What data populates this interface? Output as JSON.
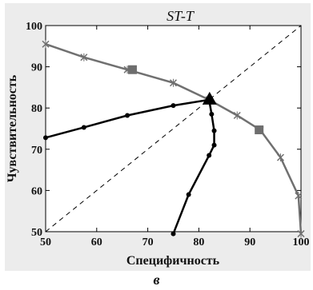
{
  "panel_letter": "в",
  "chart_data": {
    "type": "line",
    "title": "ST-T",
    "xlabel": "Специфичность",
    "ylabel": "Чувствительность",
    "xlim": [
      50,
      100
    ],
    "ylim": [
      50,
      100
    ],
    "xticks": [
      50,
      60,
      70,
      80,
      90,
      100
    ],
    "yticks": [
      50,
      60,
      70,
      80,
      90,
      100
    ],
    "grid": false,
    "series": [
      {
        "marker": "x",
        "color": "#707070",
        "points": [
          [
            50,
            95.5
          ],
          [
            57.5,
            92.3
          ],
          [
            66,
            89.3
          ],
          [
            75,
            86.1
          ],
          [
            82,
            82
          ],
          [
            87.5,
            78.2
          ],
          [
            92,
            74.7
          ],
          [
            96,
            68
          ],
          [
            99.5,
            58.7
          ],
          [
            100,
            49.5
          ]
        ]
      },
      {
        "marker": "dot",
        "color": "#000000",
        "points": [
          [
            50,
            72.8
          ],
          [
            57.5,
            75.3
          ],
          [
            66,
            78.2
          ],
          [
            75,
            80.6
          ],
          [
            82,
            82
          ]
        ]
      },
      {
        "marker": "dot",
        "color": "#000000",
        "points": [
          [
            82,
            82
          ],
          [
            82.5,
            78.5
          ],
          [
            83,
            74.5
          ],
          [
            83,
            71
          ],
          [
            82,
            68.5
          ],
          [
            78,
            59
          ],
          [
            75,
            49.5
          ]
        ]
      },
      {
        "marker": "none",
        "color": "#000000",
        "dashed": true,
        "points": [
          [
            50,
            50
          ],
          [
            100,
            100
          ]
        ]
      }
    ],
    "highlight_squares": [
      [
        67,
        89.3
      ],
      [
        91.8,
        74.7
      ]
    ],
    "highlight_triangle": [
      82.1,
      82.2
    ]
  }
}
